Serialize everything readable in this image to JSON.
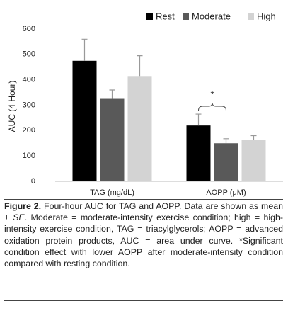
{
  "chart_data": {
    "type": "bar",
    "y_label": "AUC (4 Hour)",
    "categories": [
      "TAG (mg/dL)",
      "AOPP (μM)"
    ],
    "series": [
      {
        "name": "Rest",
        "color": "#000000",
        "values": [
          475,
          220
        ],
        "errors": [
          85,
          45
        ]
      },
      {
        "name": "Moderate",
        "color": "#595959",
        "values": [
          325,
          150
        ],
        "errors": [
          35,
          18
        ]
      },
      {
        "name": "High",
        "color": "#d3d3d3",
        "values": [
          415,
          163
        ],
        "errors": [
          80,
          17
        ]
      }
    ],
    "ylim": [
      0,
      600
    ],
    "yticks": [
      0,
      100,
      200,
      300,
      400,
      500,
      600
    ],
    "annotation": "*",
    "legend": "top"
  },
  "caption": {
    "label": "Figure 2.",
    "text_before": " Four-hour AUC for TAG and AOPP. Data are shown as mean ± ",
    "italic": "SE",
    "text_after": ". Moderate = moderate-intensity exercise condition; high = high-intensity exercise condition, TAG = triacylglycerols; AOPP = advanced oxidation protein products, AUC = area under curve. *Significant condition effect with lower AOPP after moderate-intensity condition compared with resting condition."
  }
}
